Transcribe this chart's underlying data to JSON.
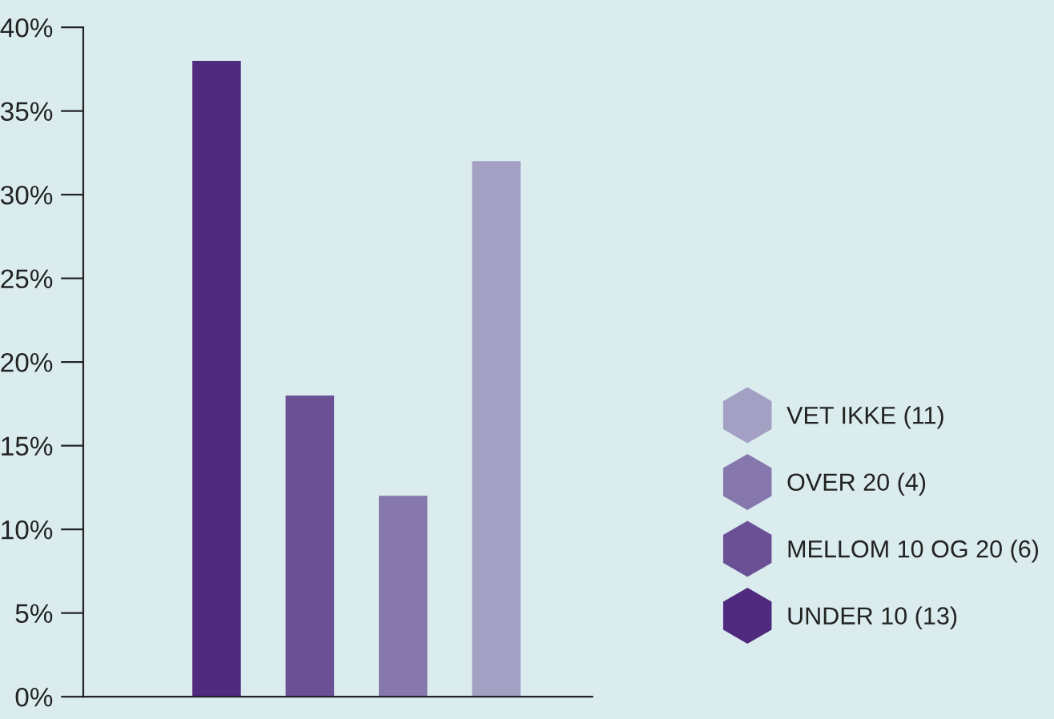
{
  "chart_data": {
    "type": "bar",
    "categories": [
      null,
      null,
      null,
      null
    ],
    "series": [
      {
        "name": "UNDER 10 (13)",
        "color": "#4f2a7f",
        "values": [
          38,
          null,
          null,
          null
        ]
      },
      {
        "name": "MELLOM 10 OG 20 (6)",
        "color": "#6b5096",
        "values": [
          null,
          18,
          null,
          null
        ]
      },
      {
        "name": "OVER 20 (4)",
        "color": "#8677ad",
        "values": [
          null,
          null,
          12,
          null
        ]
      },
      {
        "name": "VET IKKE (11)",
        "color": "#a3a0c4",
        "values": [
          null,
          null,
          null,
          32
        ]
      }
    ],
    "ylim": [
      0,
      40
    ],
    "yticks": [
      {
        "value": 0,
        "label": "0%"
      },
      {
        "value": 5,
        "label": "5%"
      },
      {
        "value": 10,
        "label": "10%"
      },
      {
        "value": 15,
        "label": "15%"
      },
      {
        "value": 20,
        "label": "20%"
      },
      {
        "value": 25,
        "label": "25%"
      },
      {
        "value": 30,
        "label": "30%"
      },
      {
        "value": 35,
        "label": "35%"
      },
      {
        "value": 40,
        "label": "40%"
      }
    ],
    "grid": false,
    "stacked": true,
    "legend": "right"
  }
}
